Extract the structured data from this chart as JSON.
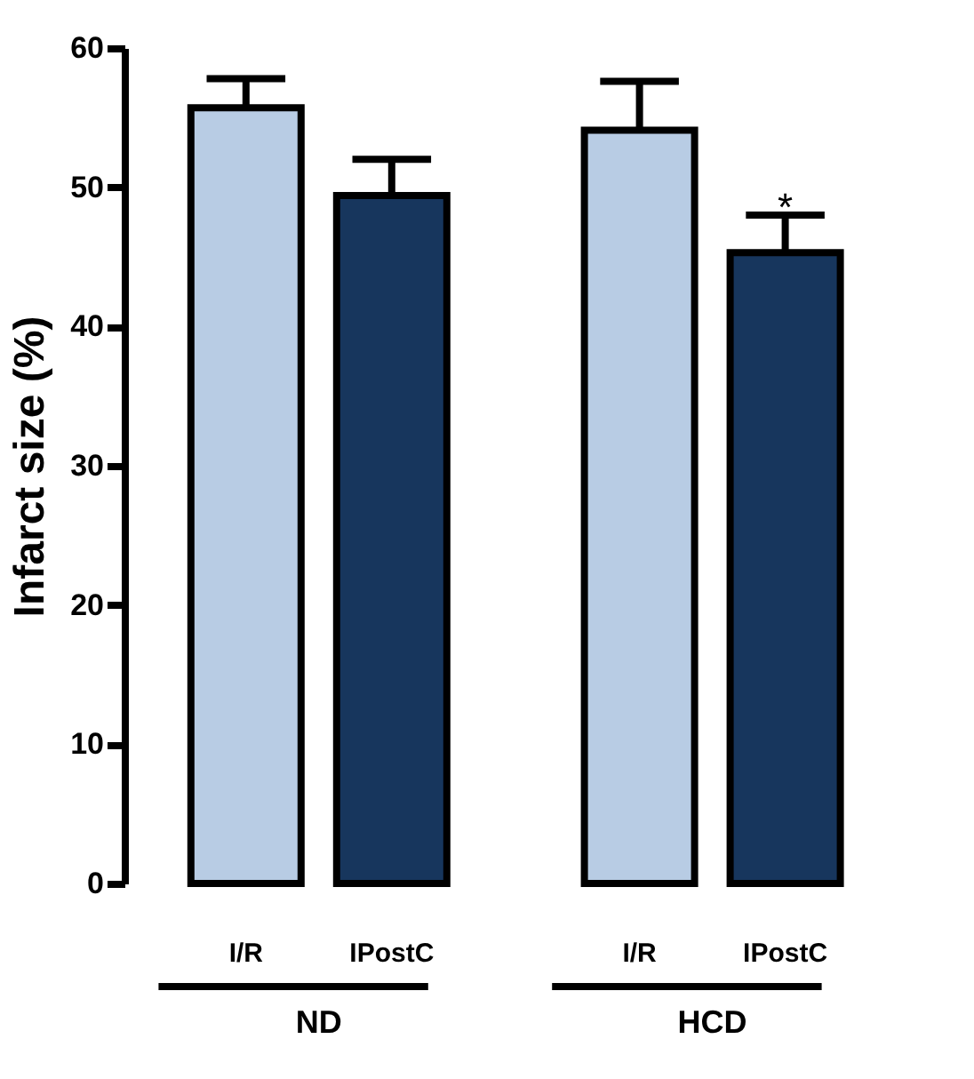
{
  "chart_data": {
    "type": "bar",
    "ylabel": "Infarct size (%)",
    "categories": [
      "I/R",
      "IPostC",
      "I/R",
      "IPostC"
    ],
    "values": [
      55.7,
      49.4,
      54.1,
      45.3
    ],
    "colors": [
      "#b8cce4",
      "#17365d",
      "#b8cce4",
      "#17365d"
    ],
    "errors": [
      2.1,
      2.6,
      3.5,
      2.7
    ],
    "ylim": [
      0,
      60
    ],
    "yticks": [
      0,
      10,
      20,
      30,
      40,
      50,
      60
    ],
    "annotations": [
      "ND",
      "HCD",
      "*"
    ]
  }
}
